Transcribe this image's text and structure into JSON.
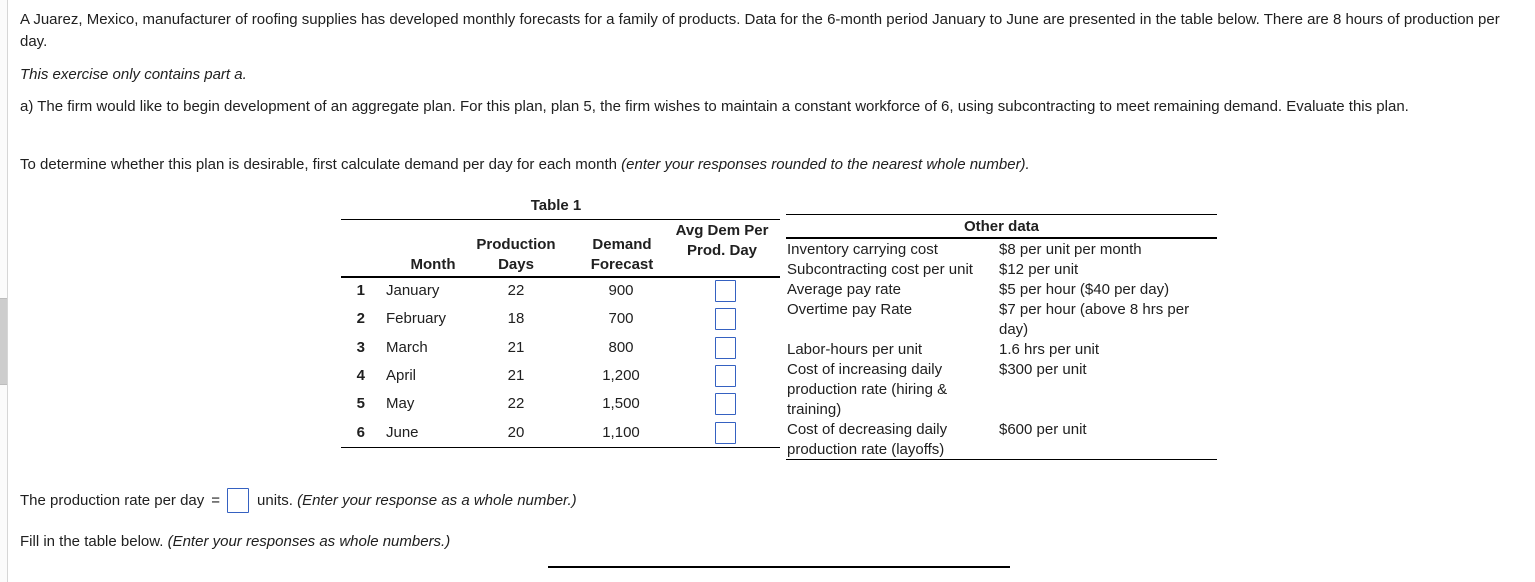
{
  "problem": {
    "intro": "A Juarez, Mexico, manufacturer of roofing supplies has developed monthly forecasts for a family of products. Data for the 6-month period January to June are presented in the table below. There are 8 hours of production per day.",
    "note": "This exercise only contains part a.",
    "part_a": "a) The firm would like to begin development of an aggregate plan. For this plan, plan 5, the firm wishes to maintain a constant workforce of 6, using subcontracting to meet remaining demand. Evaluate this plan.",
    "instruction": "To determine whether this plan is desirable, first calculate demand per day for each month ",
    "instruction_note": "(enter your responses rounded to the nearest whole number)."
  },
  "table1": {
    "title": "Table 1",
    "headers": {
      "month": "Month",
      "production_days": [
        "Production",
        "Days"
      ],
      "demand_forecast": [
        "Demand",
        "Forecast"
      ],
      "avg_dem_per_prod_day": [
        "Avg Dem Per",
        "Prod. Day"
      ]
    },
    "rows": [
      {
        "num": "1",
        "month": "January",
        "days": "22",
        "forecast": "900",
        "avg_input": ""
      },
      {
        "num": "2",
        "month": "February",
        "days": "18",
        "forecast": "700",
        "avg_input": ""
      },
      {
        "num": "3",
        "month": "March",
        "days": "21",
        "forecast": "800",
        "avg_input": ""
      },
      {
        "num": "4",
        "month": "April",
        "days": "21",
        "forecast": "1,200",
        "avg_input": ""
      },
      {
        "num": "5",
        "month": "May",
        "days": "22",
        "forecast": "1,500",
        "avg_input": ""
      },
      {
        "num": "6",
        "month": "June",
        "days": "20",
        "forecast": "1,100",
        "avg_input": ""
      }
    ]
  },
  "other_data": {
    "title": "Other data",
    "rows": [
      {
        "label": "Inventory carrying cost",
        "value": "$8 per unit per month"
      },
      {
        "label": "Subcontracting cost per unit",
        "value": "$12 per unit"
      },
      {
        "label": "Average pay rate",
        "value": "$5 per hour ($40 per day)"
      },
      {
        "label": "Overtime pay Rate",
        "value": "$7 per hour (above 8 hrs per day)"
      },
      {
        "label": "Labor-hours per unit",
        "value": "1.6 hrs per unit"
      },
      {
        "label": "Cost of increasing daily production rate (hiring & training)",
        "value": "$300 per unit"
      },
      {
        "label": "Cost of decreasing daily production rate (layoffs)",
        "value": "$600 per unit"
      }
    ]
  },
  "answers": {
    "production_rate_prefix": "The production rate per day",
    "equals": "=",
    "production_rate_value": "",
    "production_rate_suffix": "units. ",
    "production_rate_note": "(Enter your response as a whole number.)",
    "fill_table_prefix": "Fill in the table below. ",
    "fill_table_note": "(Enter your responses as whole numbers.)"
  },
  "colors": {
    "input_border": "#3561c1",
    "rule": "#000000",
    "text": "#202020"
  }
}
